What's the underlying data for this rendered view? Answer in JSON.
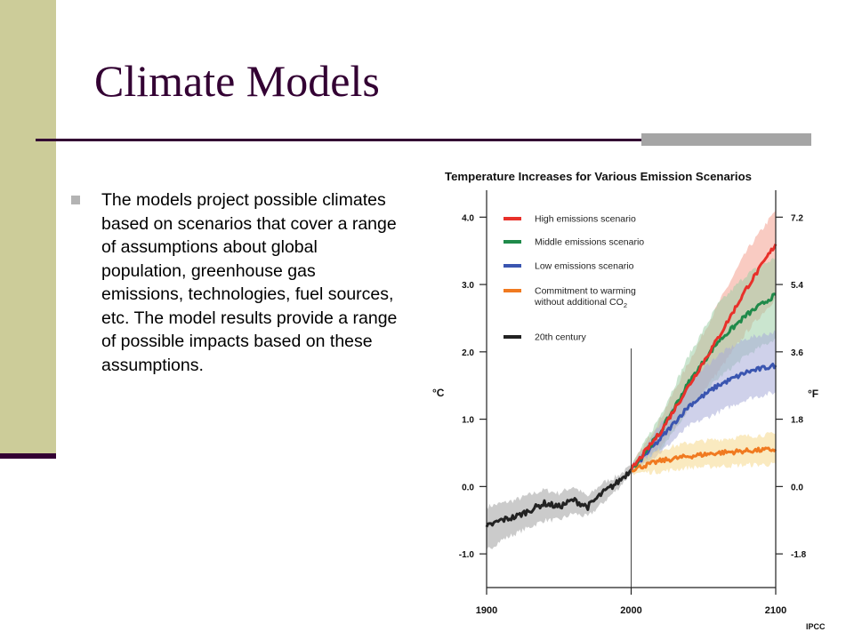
{
  "slide": {
    "title": "Climate Models",
    "bullet": "The models project possible climates based on scenarios that cover a range of assumptions about global population, greenhouse gas emissions, technologies, fuel sources, etc. The model results provide a range of possible impacts based on these assumptions.",
    "colors": {
      "title": "#330033",
      "sidebar": "#cccc99",
      "accent": "#330033",
      "rule_block": "#a5a5a5"
    }
  },
  "chart_data": {
    "type": "line",
    "title": "Temperature Increases for Various Emission Scenarios",
    "xlabel": "",
    "ylabel": "°C",
    "ylabel_right": "°F",
    "xlim": [
      1900,
      2100
    ],
    "ylim": [
      -1.5,
      4.4
    ],
    "x_ticks": [
      "1900",
      "2000",
      "2100"
    ],
    "y_ticks": [
      "4.0",
      "3.0",
      "2.0",
      "1.0",
      "0.0",
      "-1.0"
    ],
    "y_ticks_right": [
      "7.2",
      "5.4",
      "3.6",
      "1.8",
      "0.0",
      "-1.8"
    ],
    "legend_position": "top-left",
    "vline_x": 2000,
    "grid": false,
    "credit": "IPCC",
    "series": [
      {
        "name": "High emissions scenario",
        "color": "#e8302a",
        "band_color": "#f4a090",
        "x": [
          2000,
          2020,
          2040,
          2060,
          2080,
          2100
        ],
        "values": [
          0.25,
          0.8,
          1.5,
          2.2,
          2.95,
          3.6
        ],
        "lower": [
          0.2,
          0.6,
          1.15,
          1.7,
          2.3,
          2.8
        ],
        "upper": [
          0.3,
          1.0,
          1.85,
          2.7,
          3.5,
          4.1
        ]
      },
      {
        "name": "Middle emissions scenario",
        "color": "#1f8a4a",
        "band_color": "#9ed0a8",
        "x": [
          2000,
          2020,
          2040,
          2060,
          2080,
          2100
        ],
        "values": [
          0.25,
          0.8,
          1.55,
          2.15,
          2.55,
          2.85
        ],
        "lower": [
          0.2,
          0.55,
          1.15,
          1.6,
          1.95,
          2.2
        ],
        "upper": [
          0.3,
          1.05,
          1.95,
          2.7,
          3.15,
          3.4
        ]
      },
      {
        "name": "Low emissions scenario",
        "color": "#3a55b0",
        "band_color": "#a8acd8",
        "x": [
          2000,
          2020,
          2040,
          2060,
          2080,
          2100
        ],
        "values": [
          0.25,
          0.7,
          1.2,
          1.5,
          1.7,
          1.8
        ],
        "lower": [
          0.2,
          0.5,
          0.9,
          1.1,
          1.3,
          1.4
        ],
        "upper": [
          0.3,
          0.9,
          1.55,
          1.95,
          2.2,
          2.3
        ]
      },
      {
        "name": "Commitment to warming without additional CO2",
        "label_line1": "Commitment to warming",
        "label_line2": "without additional CO",
        "label_sub": "2",
        "color": "#f07a20",
        "band_color": "#f6d98c",
        "x": [
          2000,
          2020,
          2040,
          2060,
          2080,
          2100
        ],
        "values": [
          0.25,
          0.38,
          0.45,
          0.5,
          0.53,
          0.55
        ],
        "lower": [
          0.2,
          0.22,
          0.28,
          0.3,
          0.32,
          0.33
        ],
        "upper": [
          0.3,
          0.55,
          0.65,
          0.7,
          0.75,
          0.78
        ]
      },
      {
        "name": "20th century",
        "color": "#222222",
        "band_color": "#a0a0a0",
        "x": [
          1900,
          1910,
          1920,
          1930,
          1940,
          1950,
          1960,
          1970,
          1980,
          1990,
          2000
        ],
        "values": [
          -0.6,
          -0.5,
          -0.45,
          -0.35,
          -0.25,
          -0.3,
          -0.2,
          -0.3,
          -0.1,
          0.05,
          0.25
        ],
        "lower": [
          -0.95,
          -0.8,
          -0.7,
          -0.6,
          -0.5,
          -0.5,
          -0.4,
          -0.45,
          -0.25,
          -0.05,
          0.2
        ],
        "upper": [
          -0.3,
          -0.25,
          -0.2,
          -0.12,
          -0.05,
          -0.1,
          0.0,
          -0.15,
          0.05,
          0.15,
          0.3
        ]
      }
    ]
  }
}
